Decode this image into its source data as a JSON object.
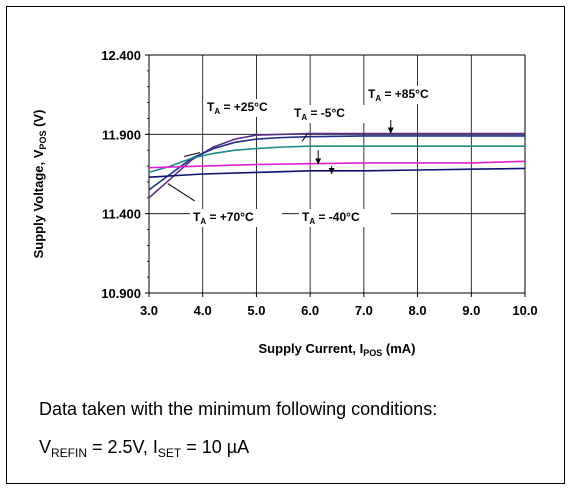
{
  "chart_data": {
    "type": "line",
    "xlabel": "Supply Current, I",
    "xlabel_sub": "POS",
    "xlabel_unit": "(mA)",
    "ylabel": "Supply Voltage, V",
    "ylabel_sub": "POS",
    "ylabel_unit": "(V)",
    "xlim": [
      3.0,
      10.0
    ],
    "ylim": [
      10.9,
      12.4
    ],
    "x_ticks": [
      "3.0",
      "4.0",
      "5.0",
      "6.0",
      "7.0",
      "8.0",
      "9.0",
      "10.0"
    ],
    "y_ticks": [
      "10.900",
      "11.400",
      "11.900",
      "12.400"
    ],
    "grid": "vertical",
    "series": [
      {
        "name": "T_A = +85°C",
        "color": "#5b2a86",
        "x": [
          3.0,
          3.4,
          3.8,
          4.2,
          4.6,
          5.0,
          5.5,
          6.0,
          7.0,
          8.0,
          9.0,
          10.0
        ],
        "y": [
          11.5,
          11.62,
          11.74,
          11.82,
          11.87,
          11.895,
          11.9,
          11.905,
          11.905,
          11.905,
          11.905,
          11.905
        ]
      },
      {
        "name": "T_A = +70°C",
        "color": "#1f2f8a",
        "x": [
          3.0,
          3.4,
          3.8,
          4.2,
          4.6,
          5.0,
          5.5,
          6.0,
          7.0,
          8.0,
          9.0,
          10.0
        ],
        "y": [
          11.55,
          11.65,
          11.75,
          11.81,
          11.85,
          11.87,
          11.88,
          11.885,
          11.89,
          11.89,
          11.89,
          11.89
        ]
      },
      {
        "name": "T_A = +25°C",
        "color": "#1e8a8a",
        "x": [
          3.0,
          3.4,
          3.8,
          4.2,
          4.6,
          5.0,
          5.5,
          6.0,
          7.0,
          8.0,
          9.0,
          10.0
        ],
        "y": [
          11.66,
          11.7,
          11.75,
          11.78,
          11.8,
          11.81,
          11.82,
          11.825,
          11.825,
          11.825,
          11.825,
          11.825
        ]
      },
      {
        "name": "T_A = -5°C",
        "color": "#e020d0",
        "x": [
          3.0,
          4.0,
          5.0,
          6.0,
          7.0,
          8.0,
          9.0,
          10.0
        ],
        "y": [
          11.69,
          11.7,
          11.71,
          11.715,
          11.72,
          11.72,
          11.72,
          11.73
        ]
      },
      {
        "name": "T_A = -40°C",
        "color": "#101070",
        "x": [
          3.0,
          4.0,
          5.0,
          6.0,
          7.0,
          8.0,
          9.0,
          10.0
        ],
        "y": [
          11.63,
          11.65,
          11.66,
          11.67,
          11.67,
          11.675,
          11.68,
          11.685
        ]
      }
    ],
    "annotations": [
      {
        "main": "T",
        "sub": "A",
        "rest": " = +25°C"
      },
      {
        "main": "T",
        "sub": "A",
        "rest": " = -5°C"
      },
      {
        "main": "T",
        "sub": "A",
        "rest": " = +85°C"
      },
      {
        "main": "T",
        "sub": "A",
        "rest": " = +70°C"
      },
      {
        "main": "T",
        "sub": "A",
        "rest": " = -40°C"
      }
    ]
  },
  "note": {
    "line1": "Data taken with the minimum following conditions:",
    "line2_v": "V",
    "line2_v_sub": "REFIN",
    "line2_v_rest": " = 2.5V, I",
    "line2_i_sub": "SET",
    "line2_i_rest": " = 10 µA"
  }
}
